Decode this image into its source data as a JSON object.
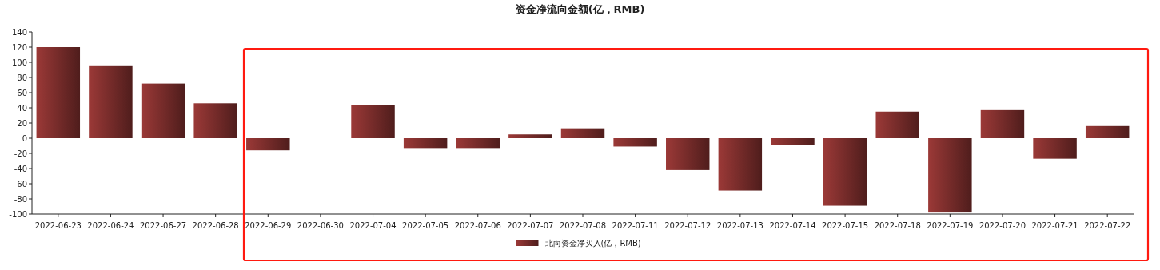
{
  "chart_data": {
    "type": "bar",
    "title": "资金净流向金额(亿，RMB)",
    "categories": [
      "2022-06-23",
      "2022-06-24",
      "2022-06-27",
      "2022-06-28",
      "2022-06-29",
      "2022-06-30",
      "2022-07-04",
      "2022-07-05",
      "2022-07-06",
      "2022-07-07",
      "2022-07-08",
      "2022-07-11",
      "2022-07-12",
      "2022-07-13",
      "2022-07-14",
      "2022-07-15",
      "2022-07-18",
      "2022-07-19",
      "2022-07-20",
      "2022-07-21",
      "2022-07-22"
    ],
    "series": [
      {
        "name": "北向资金净买入(亿，RMB)",
        "color": "#7a2d2b",
        "values": [
          120,
          96,
          72,
          46,
          -16,
          null,
          44,
          -13,
          -13,
          5,
          13,
          -11,
          -42,
          -69,
          -9,
          -89,
          35,
          -98,
          37,
          -27,
          16
        ]
      }
    ],
    "ylim": [
      -100,
      140
    ],
    "yticks": [
      -100,
      -80,
      -60,
      -40,
      -20,
      0,
      20,
      40,
      60,
      80,
      100,
      120,
      140
    ],
    "legend": "bottom"
  }
}
